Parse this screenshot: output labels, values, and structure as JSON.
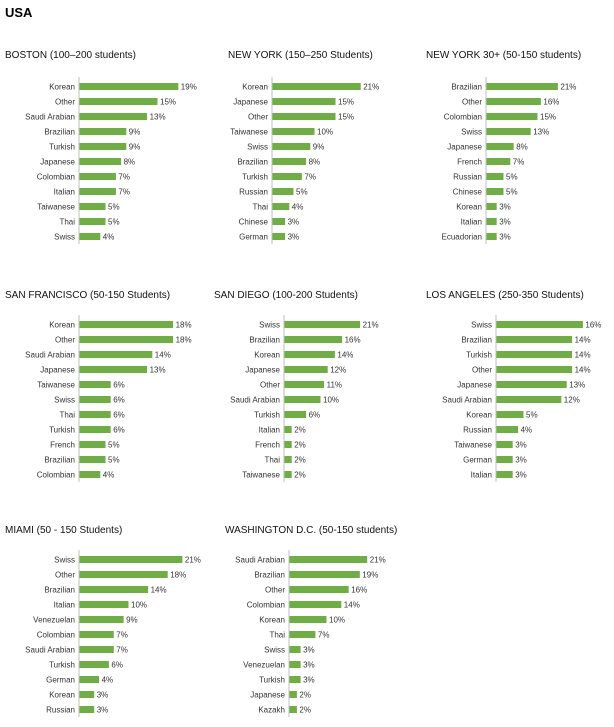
{
  "page": {
    "title": "USA"
  },
  "colors": {
    "bar": "#70ad47",
    "axis": "#bfbfbf"
  },
  "chart_data": [
    {
      "type": "bar",
      "orientation": "horizontal",
      "title": "BOSTON (100–200 students)",
      "categories": [
        "Korean",
        "Other",
        "Saudi Arabian",
        "Brazilian",
        "Turkish",
        "Japanese",
        "Colombian",
        "Italian",
        "Taiwanese",
        "Thai",
        "Swiss"
      ],
      "values": [
        19,
        15,
        13,
        9,
        9,
        8,
        7,
        7,
        5,
        5,
        4
      ],
      "value_labels": [
        "19%",
        "15%",
        "13%",
        "9%",
        "9%",
        "8%",
        "7%",
        "7%",
        "5%",
        "5%",
        "4%"
      ]
    },
    {
      "type": "bar",
      "orientation": "horizontal",
      "title": "NEW YORK (150–250 Students)",
      "categories": [
        "Korean",
        "Japanese",
        "Other",
        "Taiwanese",
        "Swiss",
        "Brazilian",
        "Turkish",
        "Russian",
        "Thai",
        "Chinese",
        "German"
      ],
      "values": [
        21,
        15,
        15,
        10,
        9,
        8,
        7,
        5,
        4,
        3,
        3
      ],
      "value_labels": [
        "21%",
        "15%",
        "15%",
        "10%",
        "9%",
        "8%",
        "7%",
        "5%",
        "4%",
        "3%",
        "3%"
      ]
    },
    {
      "type": "bar",
      "orientation": "horizontal",
      "title": "NEW YORK 30+ (50-150 students)",
      "categories": [
        "Brazilian",
        "Other",
        "Colombian",
        "Swiss",
        "Japanese",
        "French",
        "Russian",
        "Chinese",
        "Korean",
        "Italian",
        "Ecuadorian"
      ],
      "values": [
        21,
        16,
        15,
        13,
        8,
        7,
        5,
        5,
        3,
        3,
        3
      ],
      "value_labels": [
        "21%",
        "16%",
        "15%",
        "13%",
        "8%",
        "7%",
        "5%",
        "5%",
        "3%",
        "3%",
        "3%"
      ]
    },
    {
      "type": "bar",
      "orientation": "horizontal",
      "title": "SAN FRANCISCO (50-150 Students)",
      "categories": [
        "Korean",
        "Other",
        "Saudi Arabian",
        "Japanese",
        "Taiwanese",
        "Swiss",
        "Thai",
        "Turkish",
        "French",
        "Brazilian",
        "Colombian"
      ],
      "values": [
        18,
        18,
        14,
        13,
        6,
        6,
        6,
        6,
        5,
        5,
        4
      ],
      "value_labels": [
        "18%",
        "18%",
        "14%",
        "13%",
        "6%",
        "6%",
        "6%",
        "6%",
        "5%",
        "5%",
        "4%"
      ]
    },
    {
      "type": "bar",
      "orientation": "horizontal",
      "title": "SAN DIEGO (100-200 Students)",
      "categories": [
        "Swiss",
        "Brazilian",
        "Korean",
        "Japanese",
        "Other",
        "Saudi Arabian",
        "Turkish",
        "Italian",
        "French",
        "Thai",
        "Taiwanese"
      ],
      "values": [
        21,
        16,
        14,
        12,
        11,
        10,
        6,
        2,
        2,
        2,
        2
      ],
      "value_labels": [
        "21%",
        "16%",
        "14%",
        "12%",
        "11%",
        "10%",
        "6%",
        "2%",
        "2%",
        "2%",
        "2%"
      ]
    },
    {
      "type": "bar",
      "orientation": "horizontal",
      "title": "LOS ANGELES (250-350 Students)",
      "categories": [
        "Swiss",
        "Brazilian",
        "Turkish",
        "Other",
        "Japanese",
        "Saudi Arabian",
        "Korean",
        "Russian",
        "Taiwanese",
        "German",
        "Italian"
      ],
      "values": [
        16,
        14,
        14,
        14,
        13,
        12,
        5,
        4,
        3,
        3,
        3
      ],
      "value_labels": [
        "16%",
        "14%",
        "14%",
        "14%",
        "13%",
        "12%",
        "5%",
        "4%",
        "3%",
        "3%",
        "3%"
      ]
    },
    {
      "type": "bar",
      "orientation": "horizontal",
      "title": "MIAMI (50 - 150 Students)",
      "categories": [
        "Swiss",
        "Other",
        "Brazilian",
        "Italian",
        "Venezuelan",
        "Colombian",
        "Saudi Arabian",
        "Turkish",
        "German",
        "Korean",
        "Russian"
      ],
      "values": [
        21,
        18,
        14,
        10,
        9,
        7,
        7,
        6,
        4,
        3,
        3
      ],
      "value_labels": [
        "21%",
        "18%",
        "14%",
        "10%",
        "9%",
        "7%",
        "7%",
        "6%",
        "4%",
        "3%",
        "3%"
      ]
    },
    {
      "type": "bar",
      "orientation": "horizontal",
      "title": "WASHINGTON D.C. (50-150 students)",
      "categories": [
        "Saudi Arabian",
        "Brazilian",
        "Other",
        "Colombian",
        "Korean",
        "Thai",
        "Swiss",
        "Venezuelan",
        "Turkish",
        "Japanese",
        "Kazakh"
      ],
      "values": [
        21,
        19,
        16,
        14,
        10,
        7,
        3,
        3,
        3,
        2,
        2
      ],
      "value_labels": [
        "21%",
        "19%",
        "16%",
        "14%",
        "10%",
        "7%",
        "3%",
        "3%",
        "3%",
        "2%",
        "2%"
      ]
    }
  ]
}
